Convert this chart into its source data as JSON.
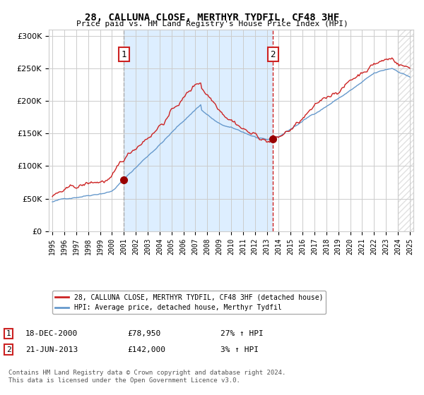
{
  "title": "28, CALLUNA CLOSE, MERTHYR TYDFIL, CF48 3HF",
  "subtitle": "Price paid vs. HM Land Registry's House Price Index (HPI)",
  "legend_line1": "28, CALLUNA CLOSE, MERTHYR TYDFIL, CF48 3HF (detached house)",
  "legend_line2": "HPI: Average price, detached house, Merthyr Tydfil",
  "annotation1_date": "18-DEC-2000",
  "annotation1_price": "£78,950",
  "annotation1_hpi": "27% ↑ HPI",
  "annotation2_date": "21-JUN-2013",
  "annotation2_price": "£142,000",
  "annotation2_hpi": "3% ↑ HPI",
  "footer1": "Contains HM Land Registry data © Crown copyright and database right 2024.",
  "footer2": "This data is licensed under the Open Government Licence v3.0.",
  "hpi_color": "#6699cc",
  "price_color": "#cc2222",
  "dot_color": "#990000",
  "shade_color": "#ddeeff",
  "vline1_color": "#aaaaaa",
  "vline2_color": "#cc2222",
  "background_color": "#ffffff",
  "grid_color": "#cccccc",
  "year_start": 1995,
  "year_end": 2025,
  "ylim_min": 0,
  "ylim_max": 310000,
  "purchase1_year": 2001.0,
  "purchase1_value": 78950,
  "purchase2_year": 2013.5,
  "purchase2_value": 142000
}
